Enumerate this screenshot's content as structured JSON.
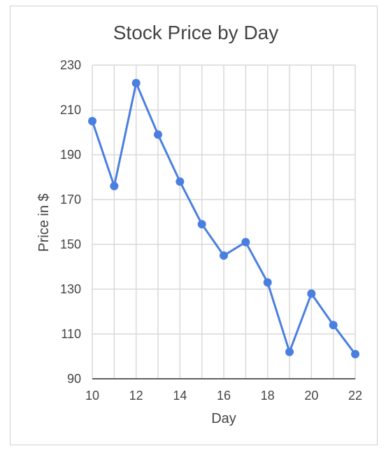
{
  "chart_data": {
    "type": "line",
    "title": "Stock Price by Day",
    "xlabel": "Day",
    "ylabel": "Price in $",
    "xlim": [
      10,
      22
    ],
    "ylim": [
      90,
      230
    ],
    "x_ticks": [
      10,
      12,
      14,
      16,
      18,
      20,
      22
    ],
    "y_ticks": [
      90,
      110,
      130,
      150,
      170,
      190,
      210,
      230
    ],
    "grid": true,
    "series": [
      {
        "color": "#4a7fe0",
        "x": [
          10,
          11,
          12,
          13,
          14,
          15,
          16,
          17,
          18,
          19,
          20,
          21,
          22
        ],
        "y": [
          205,
          176,
          222,
          199,
          178,
          159,
          145,
          151,
          133,
          102,
          128,
          114,
          101
        ]
      }
    ]
  },
  "colors": {
    "grid": "#d9d9d9",
    "axis": "#333333",
    "line": "#4a7fe0"
  }
}
